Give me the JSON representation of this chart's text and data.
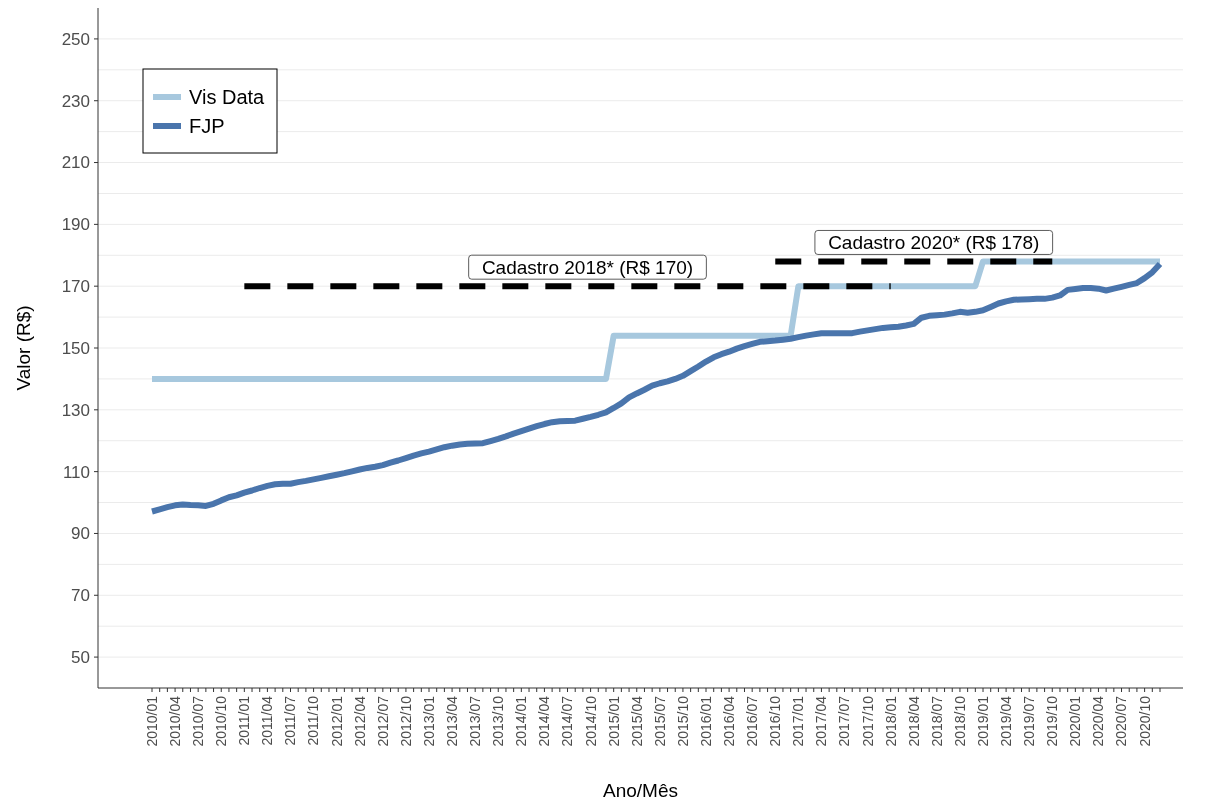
{
  "chart_data": {
    "type": "line",
    "xlabel": "Ano/Mês",
    "ylabel": "Valor (R$)",
    "categories": [
      "2010/01",
      null,
      null,
      "2010/04",
      null,
      null,
      "2010/07",
      null,
      null,
      "2010/10",
      null,
      null,
      "2011/01",
      null,
      null,
      "2011/04",
      null,
      null,
      "2011/07",
      null,
      null,
      "2011/10",
      null,
      null,
      "2012/01",
      null,
      null,
      "2012/04",
      null,
      null,
      "2012/07",
      null,
      null,
      "2012/10",
      null,
      null,
      "2013/01",
      null,
      null,
      "2013/04",
      null,
      null,
      "2013/07",
      null,
      null,
      "2013/10",
      null,
      null,
      "2014/01",
      null,
      null,
      "2014/04",
      null,
      null,
      "2014/07",
      null,
      null,
      "2014/10",
      null,
      null,
      "2015/01",
      null,
      null,
      "2015/04",
      null,
      null,
      "2015/07",
      null,
      null,
      "2015/10",
      null,
      null,
      "2016/01",
      null,
      null,
      "2016/04",
      null,
      null,
      "2016/07",
      null,
      null,
      "2016/10",
      null,
      null,
      "2017/01",
      null,
      null,
      "2017/04",
      null,
      null,
      "2017/07",
      null,
      null,
      "2017/10",
      null,
      null,
      "2018/01",
      null,
      null,
      "2018/04",
      null,
      null,
      "2018/07",
      null,
      null,
      "2018/10",
      null,
      null,
      "2019/01",
      null,
      null,
      "2019/04",
      null,
      null,
      "2019/07",
      null,
      null,
      "2019/10",
      null,
      null,
      "2020/01",
      null,
      null,
      "2020/04",
      null,
      null,
      "2020/07",
      null,
      null,
      "2020/10",
      null,
      null
    ],
    "series": [
      {
        "name": "Vis Data",
        "color": "#a7c8de",
        "values": [
          140,
          140,
          140,
          140,
          140,
          140,
          140,
          140,
          140,
          140,
          140,
          140,
          140,
          140,
          140,
          140,
          140,
          140,
          140,
          140,
          140,
          140,
          140,
          140,
          140,
          140,
          140,
          140,
          140,
          140,
          140,
          140,
          140,
          140,
          140,
          140,
          140,
          140,
          140,
          140,
          140,
          140,
          140,
          140,
          140,
          140,
          140,
          140,
          140,
          140,
          140,
          140,
          140,
          140,
          140,
          140,
          140,
          140,
          140,
          140,
          154,
          154,
          154,
          154,
          154,
          154,
          154,
          154,
          154,
          154,
          154,
          154,
          154,
          154,
          154,
          154,
          154,
          154,
          154,
          154,
          154,
          154,
          154,
          154,
          170,
          170,
          170,
          170,
          170,
          170,
          170,
          170,
          170,
          170,
          170,
          170,
          170,
          170,
          170,
          170,
          170,
          170,
          170,
          170,
          170,
          170,
          170,
          170,
          178,
          178,
          178,
          178,
          178,
          178,
          178,
          178,
          178,
          178,
          178,
          178,
          178,
          178,
          178,
          178,
          178,
          178,
          178,
          178,
          178,
          178,
          178,
          178
        ]
      },
      {
        "name": "FJP",
        "color": "#4a75ac",
        "values": [
          97.1,
          97.8,
          98.5,
          99.1,
          99.4,
          99.2,
          99.1,
          98.9,
          99.6,
          100.7,
          101.7,
          102.3,
          103.2,
          103.9,
          104.7,
          105.4,
          105.9,
          106.1,
          106.1,
          106.6,
          107.0,
          107.5,
          108.0,
          108.5,
          109.0,
          109.5,
          110.1,
          110.7,
          111.2,
          111.6,
          112.1,
          112.9,
          113.6,
          114.4,
          115.2,
          115.9,
          116.5,
          117.2,
          117.9,
          118.4,
          118.8,
          119.0,
          119.1,
          119.2,
          119.9,
          120.6,
          121.4,
          122.3,
          123.1,
          123.9,
          124.7,
          125.4,
          126.0,
          126.3,
          126.4,
          126.5,
          127.1,
          127.7,
          128.4,
          129.2,
          130.6,
          132.1,
          134.0,
          135.3,
          136.5,
          137.8,
          138.6,
          139.2,
          140.0,
          141.0,
          142.5,
          144.0,
          145.6,
          147.0,
          148.0,
          148.8,
          149.8,
          150.6,
          151.3,
          152.0,
          152.2,
          152.4,
          152.7,
          153.0,
          153.5,
          154.0,
          154.4,
          154.8,
          154.8,
          154.8,
          154.8,
          154.8,
          155.3,
          155.7,
          156.1,
          156.5,
          156.7,
          156.9,
          157.3,
          157.8,
          159.8,
          160.4,
          160.6,
          160.8,
          161.2,
          161.7,
          161.4,
          161.7,
          162.2,
          163.3,
          164.4,
          165.1,
          165.6,
          165.7,
          165.8,
          165.9,
          165.9,
          166.3,
          167.0,
          168.8,
          169.1,
          169.4,
          169.4,
          169.2,
          168.6,
          169.2,
          169.8,
          170.4,
          171.0,
          172.6,
          174.5,
          177.2
        ]
      },
      {
        "color": "#000000",
        "line_style": "dashed",
        "values": [
          null,
          null,
          null,
          null,
          null,
          null,
          null,
          null,
          null,
          null,
          null,
          null,
          170,
          170,
          170,
          170,
          170,
          170,
          170,
          170,
          170,
          170,
          170,
          170,
          170,
          170,
          170,
          170,
          170,
          170,
          170,
          170,
          170,
          170,
          170,
          170,
          170,
          170,
          170,
          170,
          170,
          170,
          170,
          170,
          170,
          170,
          170,
          170,
          170,
          170,
          170,
          170,
          170,
          170,
          170,
          170,
          170,
          170,
          170,
          170,
          170,
          170,
          170,
          170,
          170,
          170,
          170,
          170,
          170,
          170,
          170,
          170,
          170,
          170,
          170,
          170,
          170,
          170,
          170,
          170,
          170,
          170,
          170,
          170,
          170,
          170,
          170,
          170,
          170,
          170,
          170,
          170,
          170,
          170,
          170,
          170,
          170,
          null,
          null,
          null,
          null,
          null,
          null,
          null,
          null,
          null,
          null,
          null,
          null,
          null,
          null,
          null,
          null,
          null,
          null,
          null,
          null,
          null,
          null,
          null,
          null,
          null,
          null,
          null,
          null,
          null,
          null,
          null,
          null,
          null,
          null,
          null
        ]
      },
      {
        "color": "#000000",
        "line_style": "dashed",
        "values": [
          null,
          null,
          null,
          null,
          null,
          null,
          null,
          null,
          null,
          null,
          null,
          null,
          null,
          null,
          null,
          null,
          null,
          null,
          null,
          null,
          null,
          null,
          null,
          null,
          null,
          null,
          null,
          null,
          null,
          null,
          null,
          null,
          null,
          null,
          null,
          null,
          null,
          null,
          null,
          null,
          null,
          null,
          null,
          null,
          null,
          null,
          null,
          null,
          null,
          null,
          null,
          null,
          null,
          null,
          null,
          null,
          null,
          null,
          null,
          null,
          null,
          null,
          null,
          null,
          null,
          null,
          null,
          null,
          null,
          null,
          null,
          null,
          null,
          null,
          null,
          null,
          null,
          null,
          null,
          null,
          null,
          178,
          178,
          178,
          178,
          178,
          178,
          178,
          178,
          178,
          178,
          178,
          178,
          178,
          178,
          178,
          178,
          178,
          178,
          178,
          178,
          178,
          178,
          178,
          178,
          178,
          178,
          178,
          178,
          178,
          178,
          178,
          178,
          178,
          178,
          178,
          178,
          178,
          null,
          null,
          null,
          null,
          null,
          null,
          null,
          null,
          null,
          null,
          null,
          null,
          null,
          null
        ]
      }
    ],
    "annotations": [
      "Cadastro 2018* (R$ 170)",
      "Cadastro 2020* (R$ 178)"
    ],
    "ylim": [
      40,
      260
    ],
    "yticks": [
      50,
      70,
      90,
      110,
      130,
      150,
      170,
      190,
      210,
      230,
      250
    ],
    "grid": "y",
    "legend": "top left",
    "line_style": "solid"
  }
}
